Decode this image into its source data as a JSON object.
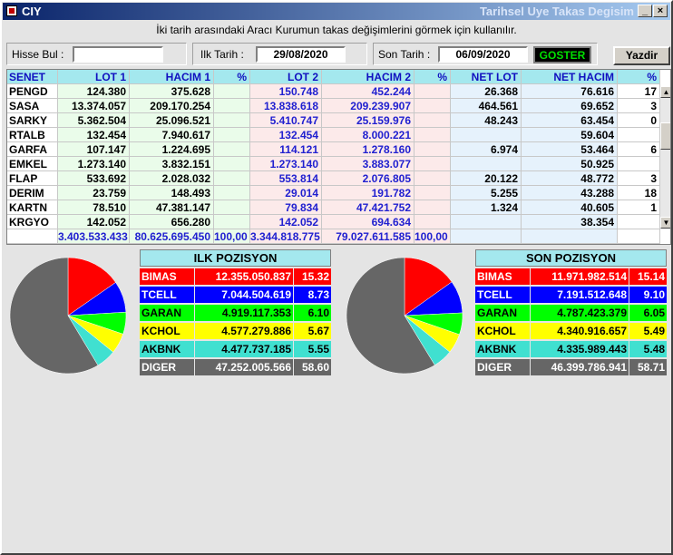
{
  "window": {
    "app_title": "CIY",
    "title": "Tarihsel Uye Takas Degisim",
    "min_glyph": "_",
    "close_glyph": "×"
  },
  "info": "İki tarih arasındaki  Aracı Kurumun takas değişimlerini görmek için kullanılır.",
  "toolbar": {
    "hisse_label": "Hisse Bul :",
    "hisse_value": "",
    "ilk_label": "Ilk Tarih :",
    "ilk_value": "29/08/2020",
    "son_label": "Son Tarih :",
    "son_value": "06/09/2020",
    "goster_label": "GOSTER",
    "yazdir_label": "Yazdir"
  },
  "grid": {
    "headers": [
      "SENET",
      "LOT 1",
      "HACIM 1",
      "%",
      "LOT 2",
      "HACIM 2",
      "%",
      "NET LOT",
      "NET HACIM",
      "%"
    ],
    "rows": [
      [
        "PENGD",
        "124.380",
        "375.628",
        "",
        "150.748",
        "452.244",
        "",
        "26.368",
        "76.616",
        "17"
      ],
      [
        "SASA",
        "13.374.057",
        "209.170.254",
        "",
        "13.838.618",
        "209.239.907",
        "",
        "464.561",
        "69.652",
        "3"
      ],
      [
        "SARKY",
        "5.362.504",
        "25.096.521",
        "",
        "5.410.747",
        "25.159.976",
        "",
        "48.243",
        "63.454",
        "0"
      ],
      [
        "RTALB",
        "132.454",
        "7.940.617",
        "",
        "132.454",
        "8.000.221",
        "",
        "",
        "59.604",
        ""
      ],
      [
        "GARFA",
        "107.147",
        "1.224.695",
        "",
        "114.121",
        "1.278.160",
        "",
        "6.974",
        "53.464",
        "6"
      ],
      [
        "EMKEL",
        "1.273.140",
        "3.832.151",
        "",
        "1.273.140",
        "3.883.077",
        "",
        "",
        "50.925",
        ""
      ],
      [
        "FLAP",
        "533.692",
        "2.028.032",
        "",
        "553.814",
        "2.076.805",
        "",
        "20.122",
        "48.772",
        "3"
      ],
      [
        "DERIM",
        "23.759",
        "148.493",
        "",
        "29.014",
        "191.782",
        "",
        "5.255",
        "43.288",
        "18"
      ],
      [
        "KARTN",
        "78.510",
        "47.381.147",
        "",
        "79.834",
        "47.421.752",
        "",
        "1.324",
        "40.605",
        "1"
      ],
      [
        "KRGYO",
        "142.052",
        "656.280",
        "",
        "142.052",
        "694.634",
        "",
        "",
        "38.354",
        ""
      ]
    ],
    "totals": [
      "",
      "3.403.533.433",
      "80.625.695.450",
      "100,00",
      "3.344.818.775",
      "79.027.611.585",
      "100,00",
      "",
      "",
      ""
    ],
    "scroll_up_glyph": "▲",
    "scroll_down_glyph": "▼"
  },
  "ilk_pozisyon": {
    "title": "ILK POZISYON",
    "rows": [
      {
        "name": "BIMAS",
        "value": "12.355.050.837",
        "pct": "15.32",
        "color": "#ff0000",
        "text_color": "#ffffff"
      },
      {
        "name": "TCELL",
        "value": "7.044.504.619",
        "pct": "8.73",
        "color": "#0000ff",
        "text_color": "#ffffff"
      },
      {
        "name": "GARAN",
        "value": "4.919.117.353",
        "pct": "6.10",
        "color": "#00ff00",
        "text_color": "#000000"
      },
      {
        "name": "KCHOL",
        "value": "4.577.279.886",
        "pct": "5.67",
        "color": "#ffff00",
        "text_color": "#000000"
      },
      {
        "name": "AKBNK",
        "value": "4.477.737.185",
        "pct": "5.55",
        "color": "#40e0d0",
        "text_color": "#000000"
      },
      {
        "name": "DIGER",
        "value": "47.252.005.566",
        "pct": "58.60",
        "color": "#666666",
        "text_color": "#ffffff"
      }
    ]
  },
  "son_pozisyon": {
    "title": "SON POZISYON",
    "rows": [
      {
        "name": "BIMAS",
        "value": "11.971.982.514",
        "pct": "15.14",
        "color": "#ff0000",
        "text_color": "#ffffff"
      },
      {
        "name": "TCELL",
        "value": "7.191.512.648",
        "pct": "9.10",
        "color": "#0000ff",
        "text_color": "#ffffff"
      },
      {
        "name": "GARAN",
        "value": "4.787.423.379",
        "pct": "6.05",
        "color": "#00ff00",
        "text_color": "#000000"
      },
      {
        "name": "KCHOL",
        "value": "4.340.916.657",
        "pct": "5.49",
        "color": "#ffff00",
        "text_color": "#000000"
      },
      {
        "name": "AKBNK",
        "value": "4.335.989.443",
        "pct": "5.48",
        "color": "#40e0d0",
        "text_color": "#000000"
      },
      {
        "name": "DIGER",
        "value": "46.399.786.941",
        "pct": "58.71",
        "color": "#666666",
        "text_color": "#ffffff"
      }
    ]
  }
}
